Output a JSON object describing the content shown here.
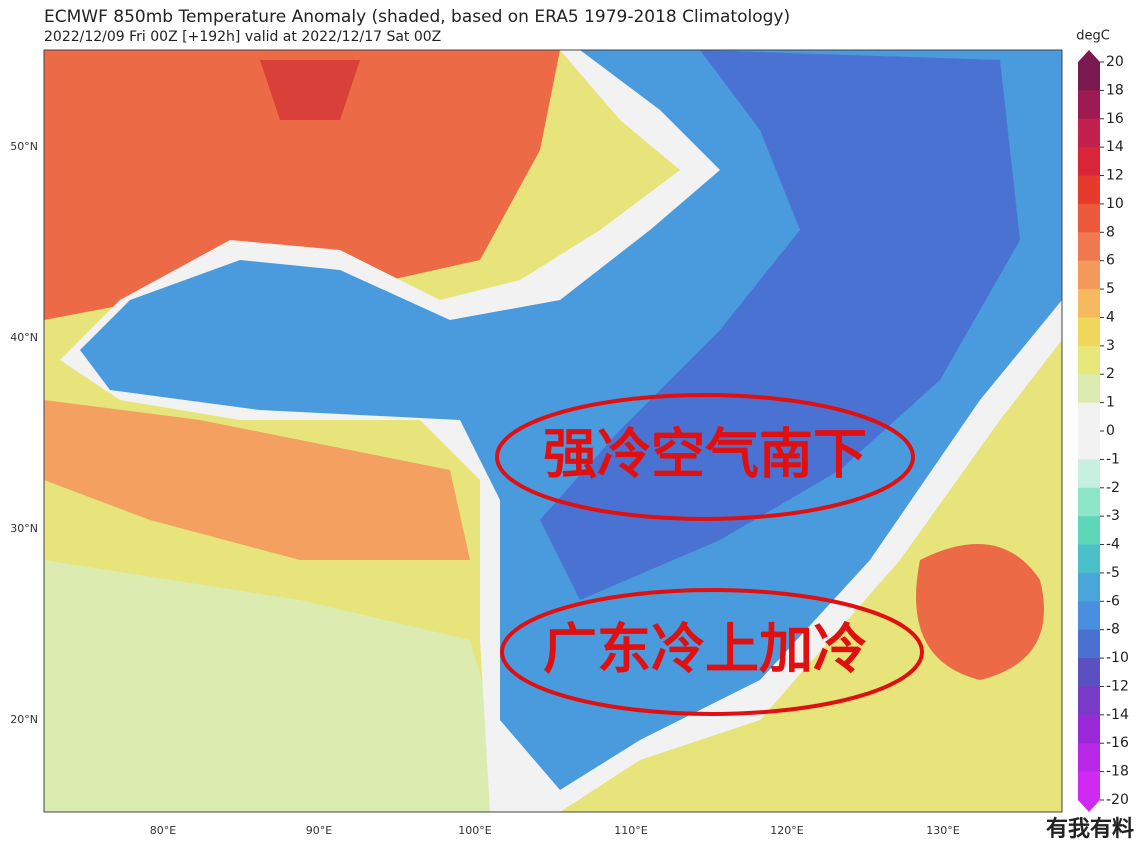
{
  "header": {
    "title": "ECMWF 850mb Temperature Anomaly (shaded, based on ERA5 1979-2018 Climatology)",
    "subtitle": "2022/12/09 Fri 00Z [+192h] valid at 2022/12/17 Sat 00Z"
  },
  "map": {
    "lat_labels": [
      "50°N",
      "40°N",
      "30°N",
      "20°N"
    ],
    "lon_labels": [
      "80°E",
      "90°E",
      "100°E",
      "110°E",
      "120°E",
      "130°E"
    ]
  },
  "colorbar": {
    "unit": "degC",
    "ticks": [
      20,
      18,
      16,
      14,
      12,
      10,
      8,
      6,
      5,
      4,
      3,
      2,
      1,
      0,
      -1,
      -2,
      -3,
      -4,
      -5,
      -6,
      -8,
      -10,
      -12,
      -14,
      -16,
      -18,
      -20
    ],
    "colors": [
      "#7a1a4f",
      "#9e1a52",
      "#c2204d",
      "#d9253a",
      "#e53b2c",
      "#ec5a3b",
      "#f07a50",
      "#f39a5c",
      "#f5b95e",
      "#f0d65a",
      "#e8e87a",
      "#dcebb0",
      "#f2f2f2",
      "#f2f2f2",
      "#c8f0e0",
      "#8ee6c8",
      "#5ed6b8",
      "#4cc0c8",
      "#4aa6d8",
      "#4a8ee0",
      "#4a70d0",
      "#5a50c0",
      "#7a3ac8",
      "#9a2ad8",
      "#b828e6",
      "#d02af0"
    ]
  },
  "annotations": [
    "强冷空气南下",
    "广东冷上加冷"
  ],
  "watermark": "有我有料"
}
